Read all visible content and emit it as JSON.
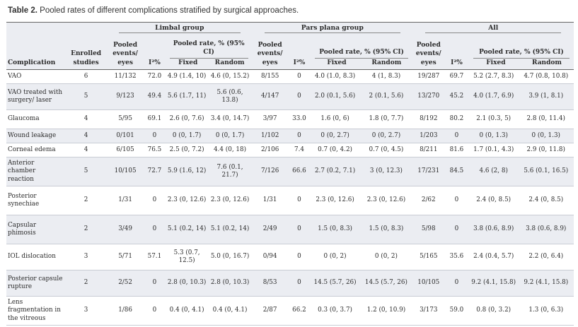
{
  "caption": {
    "label": "Table 2.",
    "text": " Pooled rates of different complications stratified by surgical approaches."
  },
  "headers": {
    "complication": "Complication",
    "enrolled": [
      "Enrolled",
      "studies"
    ],
    "groups": [
      "Limbal group",
      "Pars plana group",
      "All"
    ],
    "pooled_events": [
      "Pooled",
      "events/",
      "eyes"
    ],
    "i2": "I²%",
    "pooled_rate": "Pooled rate, % (95% CI)",
    "fixed": "Fixed",
    "random": "Random"
  },
  "rows": [
    {
      "complication": "VAO",
      "studies": "6",
      "limbal": [
        "11/132",
        "72.0",
        "4.9 (1.4, 10)",
        "4.6 (0, 15.2)"
      ],
      "parsplana": [
        "8/155",
        "0",
        "4.0 (1.0, 8.3)",
        "4 (1, 8.3)"
      ],
      "all": [
        "19/287",
        "69.7",
        "5.2 (2.7, 8.3)",
        "4.7 (0.8, 10.8)"
      ]
    },
    {
      "complication": "VAO treated with surgery/ laser",
      "studies": "5",
      "limbal": [
        "9/123",
        "49.4",
        "5.6 (1.7, 11)",
        "5.6 (0.6, 13.8)"
      ],
      "parsplana": [
        "4/147",
        "0",
        "2.0 (0.1, 5.6)",
        "2 (0.1, 5.6)"
      ],
      "all": [
        "13/270",
        "45.2",
        "4.0 (1.7, 6.9)",
        "3.9 (1, 8.1)"
      ]
    },
    {
      "complication": "Glaucoma",
      "studies": "4",
      "limbal": [
        "5/95",
        "69.1",
        "2.6 (0, 7.6)",
        "3.4 (0, 14.7)"
      ],
      "parsplana": [
        "3/97",
        "33.0",
        "1.6 (0, 6)",
        "1.8 (0, 7.7)"
      ],
      "all": [
        "8/192",
        "80.2",
        "2.1 (0.3, 5)",
        "2.8 (0, 11.4)"
      ]
    },
    {
      "complication": "Wound leakage",
      "studies": "4",
      "limbal": [
        "0/101",
        "0",
        "0 (0, 1.7)",
        "0 (0, 1.7)"
      ],
      "parsplana": [
        "1/102",
        "0",
        "0 (0, 2.7)",
        "0 (0, 2.7)"
      ],
      "all": [
        "1/203",
        "0",
        "0 (0, 1.3)",
        "0 (0, 1.3)"
      ]
    },
    {
      "complication": "Corneal edema",
      "studies": "4",
      "limbal": [
        "6/105",
        "76.5",
        "2.5 (0, 7.2)",
        "4.4 (0, 18)"
      ],
      "parsplana": [
        "2/106",
        "7.4",
        "0.7 (0, 4.2)",
        "0.7 (0, 4.5)"
      ],
      "all": [
        "8/211",
        "81.6",
        "1.7 (0.1, 4.3)",
        "2.9 (0, 11.8)"
      ]
    },
    {
      "complication": "Anterior chamber reaction",
      "studies": "5",
      "limbal": [
        "10/105",
        "72.7",
        "5.9 (1.6, 12)",
        "7.6 (0.1, 21.7)"
      ],
      "parsplana": [
        "7/126",
        "66.6",
        "2.7 (0.2, 7.1)",
        "3 (0, 12.3)"
      ],
      "all": [
        "17/231",
        "84.5",
        "4.6 (2, 8)",
        "5.6 (0.1, 16.5)"
      ]
    },
    {
      "complication": "Posterior synechiae",
      "studies": "2",
      "limbal": [
        "1/31",
        "0",
        "2.3 (0, 12.6)",
        "2.3 (0, 12.6)"
      ],
      "parsplana": [
        "1/31",
        "0",
        "2.3 (0, 12.6)",
        "2.3 (0, 12.6)"
      ],
      "all": [
        "2/62",
        "0",
        "2.4 (0, 8.5)",
        "2.4 (0, 8.5)"
      ]
    },
    {
      "complication": "Capsular phimosis",
      "studies": "2",
      "limbal": [
        "3/49",
        "0",
        "5.1 (0.2, 14)",
        "5.1 (0.2, 14)"
      ],
      "parsplana": [
        "2/49",
        "0",
        "1.5 (0, 8.3)",
        "1.5 (0, 8.3)"
      ],
      "all": [
        "5/98",
        "0",
        "3.8 (0.6, 8.9)",
        "3.8 (0.6, 8.9)"
      ]
    },
    {
      "complication": "IOL dislocation",
      "studies": "3",
      "limbal": [
        "5/71",
        "57.1",
        "5.3 (0.7, 12.5)",
        "5.0 (0, 16.7)"
      ],
      "parsplana": [
        "0/94",
        "0",
        "0 (0, 2)",
        "0 (0, 2)"
      ],
      "all": [
        "5/165",
        "35.6",
        "2.4 (0.4, 5.7)",
        "2.2 (0, 6.4)"
      ]
    },
    {
      "complication": "Posterior capsule rupture",
      "studies": "2",
      "limbal": [
        "2/52",
        "0",
        "2.8 (0, 10.3)",
        "2.8 (0, 10.3)"
      ],
      "parsplana": [
        "8/53",
        "0",
        "14.5 (5.7, 26)",
        "14.5 (5.7, 26)"
      ],
      "all": [
        "10/105",
        "0",
        "9.2 (4.1, 15.8)",
        "9.2 (4.1, 15.8)"
      ]
    },
    {
      "complication": "Lens fragmentation in the vitreous",
      "studies": "3",
      "limbal": [
        "1/86",
        "0",
        "0.4 (0, 4.1)",
        "0.4 (0, 4.1)"
      ],
      "parsplana": [
        "2/87",
        "66.2",
        "0.3 (0, 3.7)",
        "1.2 (0, 10.9)"
      ],
      "all": [
        "3/173",
        "59.0",
        "0.8 (0, 3.2)",
        "1.3 (0, 6.3)"
      ]
    }
  ]
}
